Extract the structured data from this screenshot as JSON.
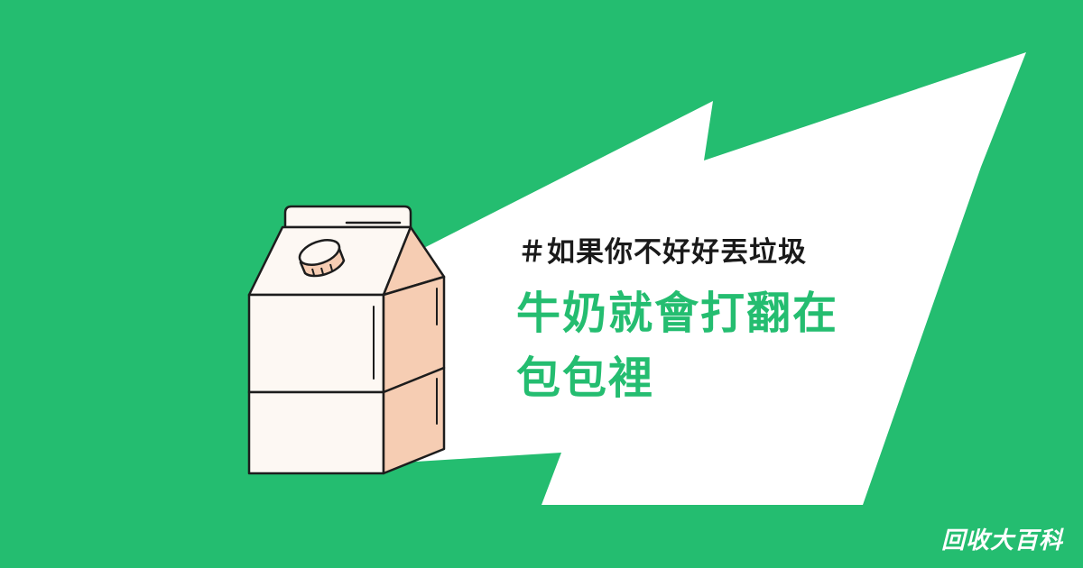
{
  "colors": {
    "background": "#24bd70",
    "bubble": "#ffffff",
    "headline": "#24bd70",
    "tag": "#1a1a1a",
    "carton_front": "#fdf8f3",
    "carton_side": "#f6cdb3",
    "cap": "#f6cdb3"
  },
  "icons": [
    "milk-carton-icon",
    "bottle-cap-icon",
    "speech-bubble-shape"
  ],
  "content": {
    "tag_line": "＃如果你不好好丟垃圾",
    "headline_line1": "牛奶就會打翻在",
    "headline_line2": "包包裡"
  },
  "brand": {
    "name": "回收大百科"
  }
}
